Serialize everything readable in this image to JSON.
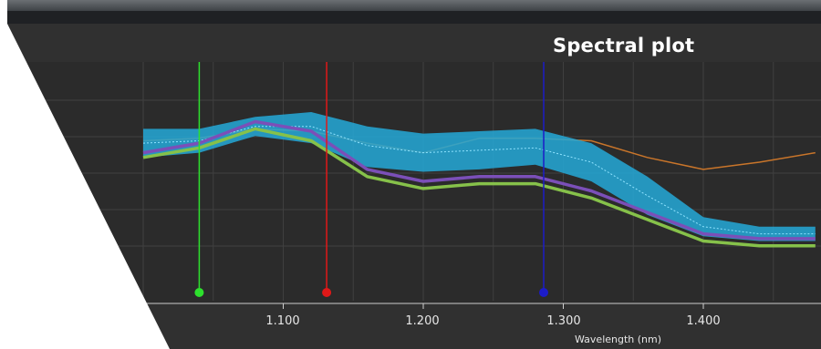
{
  "window": {
    "title": "Spectral plot"
  },
  "chart_data": {
    "type": "area",
    "title": "Spectral plot",
    "xlabel": "Wavelength (nm)",
    "ylabel": "",
    "x_ticks": [
      "1.100",
      "1.200",
      "1.300",
      "1.400"
    ],
    "xlim": [
      1.0,
      1.48
    ],
    "ylim": [
      0,
      1
    ],
    "grid": true,
    "markers": [
      {
        "name": "green-marker",
        "x": 1.04,
        "color": "#2de02d"
      },
      {
        "name": "red-marker",
        "x": 1.131,
        "color": "#e01818"
      },
      {
        "name": "blue-marker",
        "x": 1.286,
        "color": "#1c1cc8"
      }
    ],
    "series": [
      {
        "color": "#c9752a",
        "band": false,
        "x": [
          1.0,
          1.04,
          1.08,
          1.12,
          1.16,
          1.2,
          1.24,
          1.28,
          1.32,
          1.36,
          1.4,
          1.44,
          1.48
        ],
        "y": [
          0.67,
          0.68,
          0.72,
          0.71,
          0.66,
          0.62,
          0.68,
          0.68,
          0.67,
          0.6,
          0.55,
          0.58,
          0.62
        ]
      },
      {
        "color": "#25a9d8",
        "band": true,
        "x": [
          1.0,
          1.04,
          1.08,
          1.12,
          1.16,
          1.2,
          1.24,
          1.28,
          1.32,
          1.36,
          1.4,
          1.44,
          1.48
        ],
        "y": [
          0.66,
          0.67,
          0.73,
          0.73,
          0.65,
          0.62,
          0.63,
          0.64,
          0.58,
          0.44,
          0.31,
          0.28,
          0.28
        ],
        "y_low": [
          0.6,
          0.62,
          0.69,
          0.66,
          0.56,
          0.54,
          0.55,
          0.57,
          0.5,
          0.36,
          0.27,
          0.25,
          0.25
        ],
        "y_high": [
          0.72,
          0.72,
          0.77,
          0.79,
          0.73,
          0.7,
          0.71,
          0.72,
          0.66,
          0.52,
          0.35,
          0.31,
          0.31
        ]
      },
      {
        "color": "#7b4fb8",
        "band": false,
        "x": [
          1.0,
          1.04,
          1.08,
          1.12,
          1.16,
          1.2,
          1.24,
          1.28,
          1.32,
          1.36,
          1.4,
          1.44,
          1.48
        ],
        "y": [
          0.62,
          0.66,
          0.75,
          0.71,
          0.55,
          0.5,
          0.52,
          0.52,
          0.46,
          0.37,
          0.28,
          0.26,
          0.26
        ]
      },
      {
        "color": "#86c14a",
        "band": false,
        "x": [
          1.0,
          1.04,
          1.08,
          1.12,
          1.16,
          1.2,
          1.24,
          1.28,
          1.32,
          1.36,
          1.4,
          1.44,
          1.48
        ],
        "y": [
          0.6,
          0.64,
          0.72,
          0.67,
          0.52,
          0.47,
          0.49,
          0.49,
          0.43,
          0.34,
          0.25,
          0.23,
          0.23
        ]
      }
    ]
  }
}
